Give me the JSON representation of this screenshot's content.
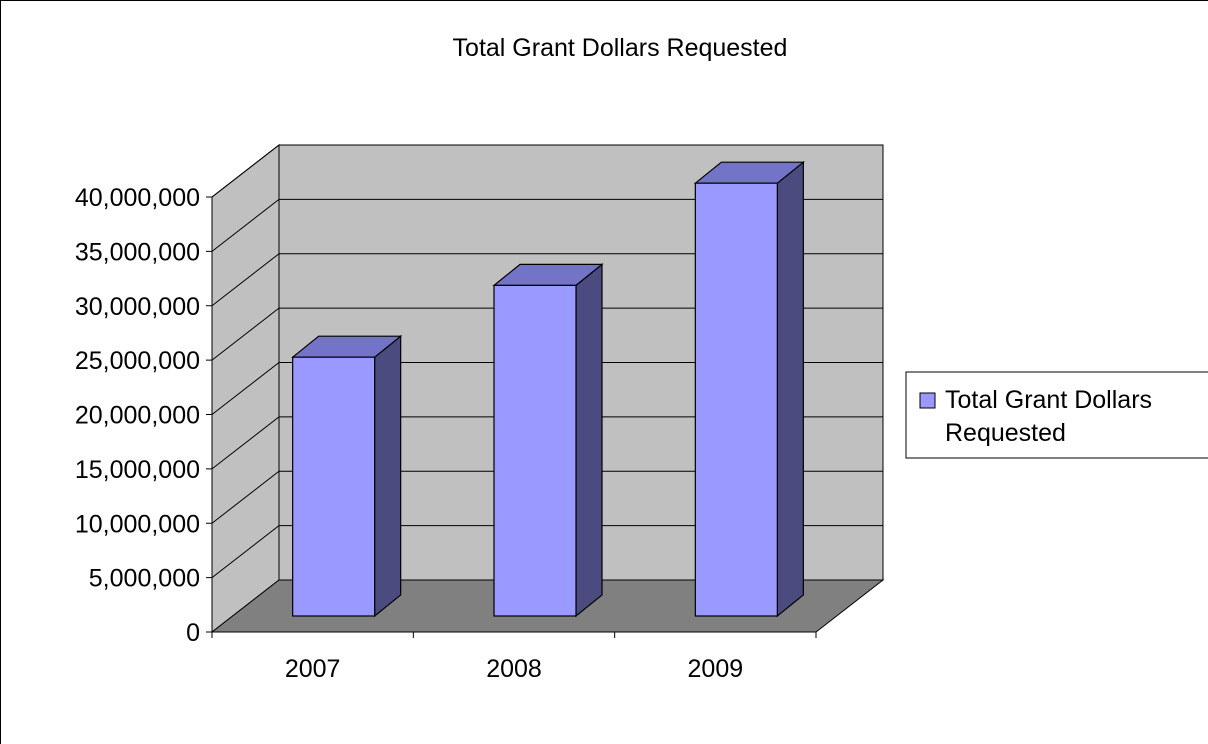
{
  "chart_data": {
    "type": "bar",
    "style": "3d-column",
    "title": "Total Grant Dollars Requested",
    "xlabel": "",
    "ylabel": "",
    "categories": [
      "2007",
      "2008",
      "2009"
    ],
    "series": [
      {
        "name": "Total Grant Dollars Requested",
        "values": [
          23800000,
          30400000,
          39800000
        ]
      }
    ],
    "yticks": [
      "0",
      "5,000,000",
      "10,000,000",
      "15,000,000",
      "20,000,000",
      "25,000,000",
      "30,000,000",
      "35,000,000",
      "40,000,000"
    ],
    "ylim": [
      0,
      40000000
    ],
    "grid": true,
    "legend": {
      "position": "right",
      "lines": [
        "Total Grant Dollars",
        "Requested"
      ]
    },
    "colors": {
      "bar_front": "#9999ff",
      "bar_top": "#7373c8",
      "bar_side": "#4b4b80",
      "back_wall": "#c0c0c0",
      "side_wall": "#c0c0c0",
      "floor": "#808080"
    }
  }
}
